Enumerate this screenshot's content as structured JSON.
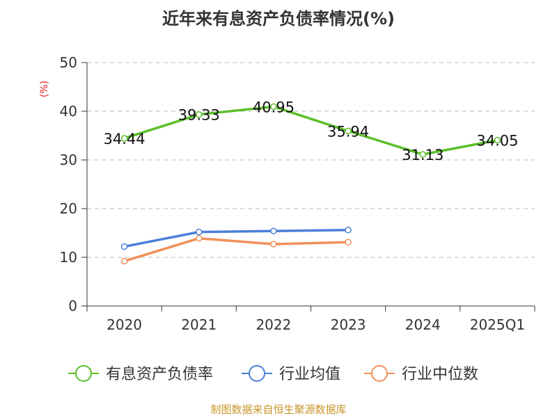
{
  "chart_data": {
    "type": "line",
    "title": "近年来有息资产负债率情况(%)",
    "ylabel": "(%)",
    "xlabel": "",
    "categories": [
      "2020",
      "2021",
      "2022",
      "2023",
      "2024",
      "2025Q1"
    ],
    "ylim": [
      0,
      50
    ],
    "yticks": [
      0,
      10,
      20,
      30,
      40,
      50
    ],
    "grid": true,
    "legend_position": "bottom",
    "series": [
      {
        "name": "有息资产负债率",
        "color": "#5cbf2a",
        "values": [
          34.44,
          39.33,
          40.95,
          35.94,
          31.13,
          34.05
        ],
        "labels": [
          "34.44",
          "39.33",
          "40.95",
          "35.94",
          "31.13",
          "34.05"
        ]
      },
      {
        "name": "行业均值",
        "color": "#4a7fd8",
        "values": [
          12.2,
          15.2,
          15.4,
          15.6,
          null,
          null
        ]
      },
      {
        "name": "行业中位数",
        "color": "#f0905a",
        "values": [
          9.2,
          13.9,
          12.7,
          13.1,
          null,
          null
        ]
      }
    ],
    "source": "制图数据来自恒生聚源数据库",
    "colors": {
      "title": "#333333",
      "ylabel": "#e02020",
      "source": "#c8962a",
      "axis": "#333333",
      "grid": "#bbbbbb"
    }
  }
}
